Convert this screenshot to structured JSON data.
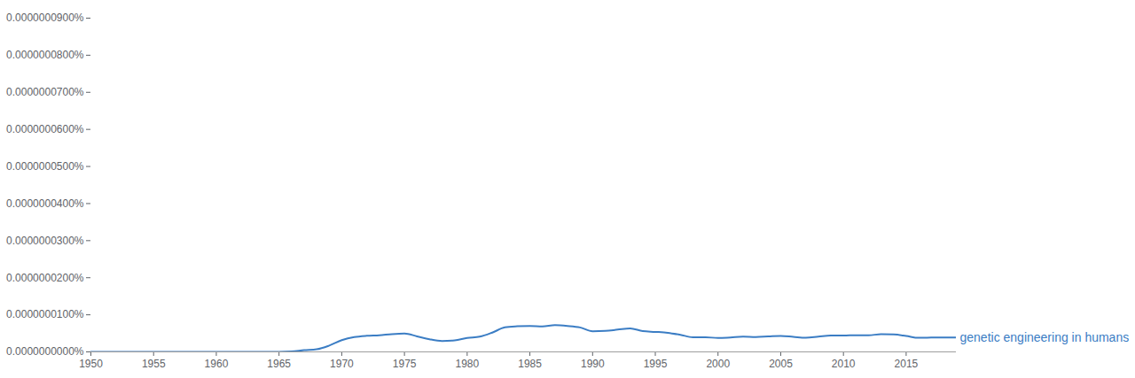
{
  "chart_data": {
    "type": "line",
    "x": [
      1950,
      1951,
      1952,
      1953,
      1954,
      1955,
      1956,
      1957,
      1958,
      1959,
      1960,
      1961,
      1962,
      1963,
      1964,
      1965,
      1966,
      1967,
      1968,
      1969,
      1970,
      1971,
      1972,
      1973,
      1974,
      1975,
      1976,
      1977,
      1978,
      1979,
      1980,
      1981,
      1982,
      1983,
      1984,
      1985,
      1986,
      1987,
      1988,
      1989,
      1990,
      1991,
      1992,
      1993,
      1994,
      1995,
      1996,
      1997,
      1998,
      1999,
      2000,
      2001,
      2002,
      2003,
      2004,
      2005,
      2006,
      2007,
      2008,
      2009,
      2010,
      2011,
      2012,
      2013,
      2014,
      2015,
      2016,
      2017,
      2018,
      2019
    ],
    "series": [
      {
        "name": "genetic engineering in humans",
        "color": "#3b7dc4",
        "values": [
          0,
          0,
          0,
          0,
          0,
          0,
          0,
          0,
          0,
          0,
          0,
          0,
          0,
          0,
          0,
          0,
          1e-10,
          4.5e-10,
          7e-10,
          1.7e-09,
          3.15e-09,
          4e-09,
          4.35e-09,
          4.5e-09,
          4.8e-09,
          4.95e-09,
          4.2e-09,
          3.4e-09,
          2.95e-09,
          3.1e-09,
          3.75e-09,
          4.1e-09,
          5.2e-09,
          6.6e-09,
          6.9e-09,
          7e-09,
          6.85e-09,
          7.2e-09,
          7e-09,
          6.6e-09,
          5.55e-09,
          5.65e-09,
          6e-09,
          6.35e-09,
          5.6e-09,
          5.4e-09,
          5.15e-09,
          4.6e-09,
          3.95e-09,
          3.95e-09,
          3.75e-09,
          3.9e-09,
          4.1e-09,
          4e-09,
          4.15e-09,
          4.3e-09,
          4.05e-09,
          3.8e-09,
          4.1e-09,
          4.4e-09,
          4.4e-09,
          4.5e-09,
          4.5e-09,
          4.75e-09,
          4.7e-09,
          4.3e-09,
          3.8e-09,
          3.85e-09,
          3.9e-09,
          3.9e-09
        ]
      }
    ],
    "xlim": [
      1950,
      2019
    ],
    "xticks": [
      1950,
      1955,
      1960,
      1965,
      1970,
      1975,
      1980,
      1985,
      1990,
      1995,
      2000,
      2005,
      2010,
      2015
    ],
    "ylim": [
      0,
      9e-08
    ],
    "yticks": [
      {
        "value": 0,
        "label": "0.0000000000%"
      },
      {
        "value": 1e-08,
        "label": "0.0000000100%"
      },
      {
        "value": 2e-08,
        "label": "0.0000000200%"
      },
      {
        "value": 3e-08,
        "label": "0.0000000300%"
      },
      {
        "value": 4e-08,
        "label": "0.0000000400%"
      },
      {
        "value": 5e-08,
        "label": "0.0000000500%"
      },
      {
        "value": 6e-08,
        "label": "0.0000000600%"
      },
      {
        "value": 7e-08,
        "label": "0.0000000700%"
      },
      {
        "value": 8e-08,
        "label": "0.0000000800%"
      },
      {
        "value": 9e-08,
        "label": "0.0000000900%"
      }
    ],
    "grid": false
  }
}
